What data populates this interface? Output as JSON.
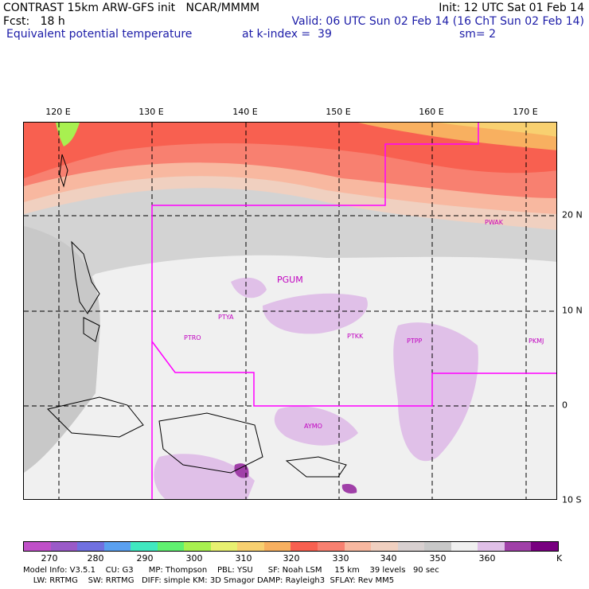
{
  "header": {
    "title": "CONTRAST 15km ARW-GFS init   NCAR/MMMM",
    "init": "Init: 12 UTC Sat 01 Feb 14",
    "fcst": "Fcst:   18 h",
    "valid": "Valid: 06 UTC Sun 02 Feb 14 (16 ChT Sun 02 Feb 14)",
    "field": "Equivalent potential temperature",
    "level": "at k-index =  39",
    "smooth": "sm= 2"
  },
  "map": {
    "lon_labels": [
      "120 E",
      "130 E",
      "140 E",
      "150 E",
      "160 E",
      "170 E"
    ],
    "lat_labels": [
      "20 N",
      "10 N",
      "0",
      "10 S"
    ],
    "stations": [
      "PGUM",
      "PTYA",
      "PTRO",
      "PTKK",
      "PTPP",
      "PKMJ",
      "PWAK",
      "AYMO"
    ],
    "boundary_color": "#ff00ff",
    "grid_style": "dashed"
  },
  "colorbar": {
    "colors": [
      "#c050c8",
      "#9a5ac8",
      "#7070e0",
      "#5aa0f0",
      "#40e8c0",
      "#60f070",
      "#a8f050",
      "#e8f070",
      "#f8d070",
      "#f8b060",
      "#f86050",
      "#f88070",
      "#f8b8a0",
      "#f0d0c0",
      "#d8d0d0",
      "#c8c8c8",
      "#f0f0f0",
      "#e0c0e8",
      "#a040a8",
      "#780080"
    ],
    "labels": [
      "270",
      "280",
      "290",
      "300",
      "310",
      "320",
      "330",
      "340",
      "350",
      "360"
    ],
    "unit": "K"
  },
  "footer": {
    "line1": "Model Info: V3.5.1    CU: G3      MP: Thompson    PBL: YSU      SF: Noah LSM     15 km    39 levels   90 sec",
    "line2": "    LW: RRTMG    SW: RRTMG   DIFF: simple KM: 3D Smagor DAMP: Rayleigh3  SFLAY: Rev MM5"
  }
}
